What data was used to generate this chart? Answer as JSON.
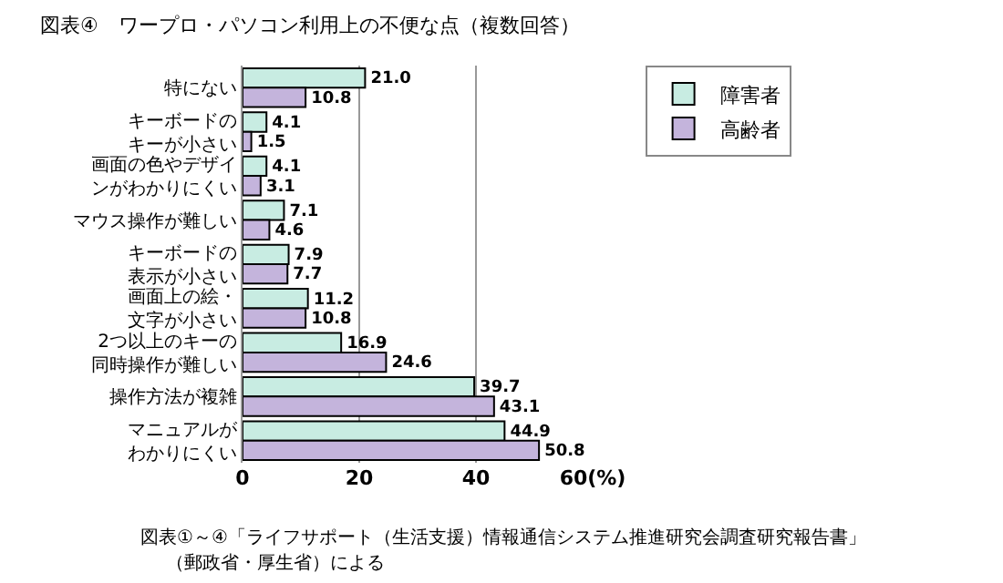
{
  "chart_data": {
    "type": "bar",
    "orientation": "horizontal",
    "title": "図表④　ワープロ・パソコン利用上の不便な点（複数回答）",
    "categories": [
      "特にない",
      "キーボードのキーが小さい",
      "画面の色やデザインがわかりにくい",
      "マウス操作が難しい",
      "キーボードの表示が小さい",
      "画面上の絵・文字が小さい",
      "2つ以上のキーの同時操作が難しい",
      "操作方法が複雑",
      "マニュアルがわかりにくい"
    ],
    "series": [
      {
        "name": "障害者",
        "color": "#c8ece2",
        "values": [
          21.0,
          4.1,
          4.1,
          7.1,
          7.9,
          11.2,
          16.9,
          39.7,
          44.9
        ],
        "value_labels": [
          "21.0",
          "4.1",
          "4.1",
          "7.1",
          "7.9",
          "11.2",
          "16.9",
          "39.7",
          "44.9"
        ]
      },
      {
        "name": "高齢者",
        "color": "#c4b4dc",
        "values": [
          10.8,
          1.5,
          3.1,
          4.6,
          7.7,
          10.8,
          24.6,
          43.1,
          50.8
        ],
        "value_labels": [
          "10.8",
          "1.5",
          "3.1",
          "4.6",
          "7.7",
          "10.8",
          "24.6",
          "43.1",
          "50.8"
        ]
      }
    ],
    "xlim": [
      0,
      60
    ],
    "xticks": [
      0,
      20,
      40,
      {
        "value": 60,
        "label": "60(%)"
      }
    ],
    "grid": "x",
    "legend": "top right",
    "annotations": [
      "図表①～④「ライフサポート（生活支援）情報通信システム推進研究会調査研究報告書」",
      "（郵政省・厚生省）による"
    ]
  }
}
